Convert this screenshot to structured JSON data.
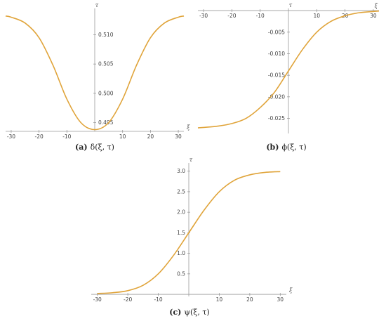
{
  "chart_data": [
    {
      "type": "line",
      "caption_tag": "(a)",
      "caption_expr": "δ(ξ, τ)",
      "xlabel": "ξ",
      "ylabel": "τ",
      "xlim": [
        -32,
        32
      ],
      "ylim": [
        0.4935,
        0.5145
      ],
      "xticks": [
        -30,
        -20,
        -10,
        10,
        20,
        30
      ],
      "yticks": [
        0.495,
        0.5,
        0.505,
        0.51
      ],
      "ytick_labels": [
        "0.495",
        "0.500",
        "0.505",
        "0.510"
      ],
      "y_axis_at_x": 0,
      "x_axis_at_y": 0.4935,
      "x": [
        -32,
        -30,
        -25,
        -20,
        -15,
        -10,
        -5,
        0,
        5,
        10,
        15,
        20,
        25,
        30,
        32
      ],
      "y": [
        0.5132,
        0.513,
        0.512,
        0.5095,
        0.5048,
        0.499,
        0.495,
        0.4938,
        0.495,
        0.499,
        0.5048,
        0.5095,
        0.512,
        0.513,
        0.5132
      ],
      "color": "#e0a43a"
    },
    {
      "type": "line",
      "caption_tag": "(b)",
      "caption_expr": "ϕ(ξ, τ)",
      "xlabel": "ξ",
      "ylabel": "τ",
      "xlim": [
        -32,
        32
      ],
      "ylim": [
        -0.0285,
        0.0005
      ],
      "xticks": [
        -30,
        -20,
        -10,
        10,
        20,
        30
      ],
      "yticks": [
        -0.005,
        -0.01,
        -0.015,
        -0.02,
        -0.025
      ],
      "ytick_labels": [
        "-0.005",
        "-0.010",
        "-0.015",
        "-0.020",
        "-0.025"
      ],
      "y_axis_at_x": 0,
      "x_axis_at_y": 0,
      "x": [
        -32,
        -30,
        -25,
        -20,
        -15,
        -10,
        -5,
        0,
        5,
        10,
        15,
        20,
        25,
        30,
        32
      ],
      "y": [
        -0.0272,
        -0.0271,
        -0.0268,
        -0.0262,
        -0.025,
        -0.0225,
        -0.019,
        -0.014,
        -0.009,
        -0.005,
        -0.0025,
        -0.0012,
        -0.0005,
        -0.0002,
        -0.0001
      ],
      "color": "#e0a43a"
    },
    {
      "type": "line",
      "caption_tag": "(c)",
      "caption_expr": "ψ(ξ, τ)",
      "xlabel": "ξ",
      "ylabel": "τ",
      "xlim": [
        -32,
        32
      ],
      "ylim": [
        -0.05,
        3.2
      ],
      "xticks": [
        -30,
        -20,
        -10,
        10,
        20,
        30
      ],
      "yticks": [
        0.5,
        1.0,
        1.5,
        2.0,
        2.5,
        3.0
      ],
      "ytick_labels": [
        "0.5",
        "1.0",
        "1.5",
        "2.0",
        "2.5",
        "3.0"
      ],
      "y_axis_at_x": 0,
      "x_axis_at_y": 0,
      "x": [
        -30,
        -25,
        -20,
        -15,
        -10,
        -5,
        0,
        5,
        10,
        15,
        20,
        25,
        30
      ],
      "y": [
        0.02,
        0.04,
        0.09,
        0.22,
        0.5,
        0.95,
        1.5,
        2.05,
        2.5,
        2.78,
        2.91,
        2.97,
        2.99
      ],
      "color": "#e0a43a"
    }
  ]
}
